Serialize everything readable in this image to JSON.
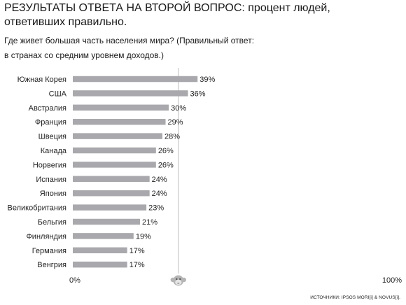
{
  "title_line1": "РЕЗУЛЬТАТЫ ОТВЕТА НА ВТОРОЙ ВОПРОС: процент людей,",
  "title_line2": "ответивших правильно.",
  "subtitle_line1": "Где живет большая часть населения мира? (Правильный ответ:",
  "subtitle_line2": "в странах со средним уровнем доходов.)",
  "source": "ИСТОЧНИКИ: IPSOS MORI[i] & NOVUS[i].",
  "colors": {
    "bar": "#a9a9ad",
    "marker": "#bdbdbd",
    "text": "#222222"
  },
  "marker_icon": "chimpanzee-icon",
  "chart_data": {
    "type": "bar",
    "orientation": "horizontal",
    "categories": [
      "Южная Корея",
      "США",
      "Австралия",
      "Франция",
      "Швеция",
      "Канада",
      "Норвегия",
      "Испания",
      "Япония",
      "Великобритания",
      "Бельгия",
      "Финляндия",
      "Германия",
      "Венгрия"
    ],
    "values": [
      39,
      36,
      30,
      29,
      28,
      26,
      26,
      24,
      24,
      23,
      21,
      19,
      17,
      17
    ],
    "value_suffix": "%",
    "xlim": [
      0,
      100
    ],
    "x_tick_labels": [
      "0%",
      "100%"
    ],
    "reference_line": 33,
    "grid": false,
    "legend": "none"
  }
}
